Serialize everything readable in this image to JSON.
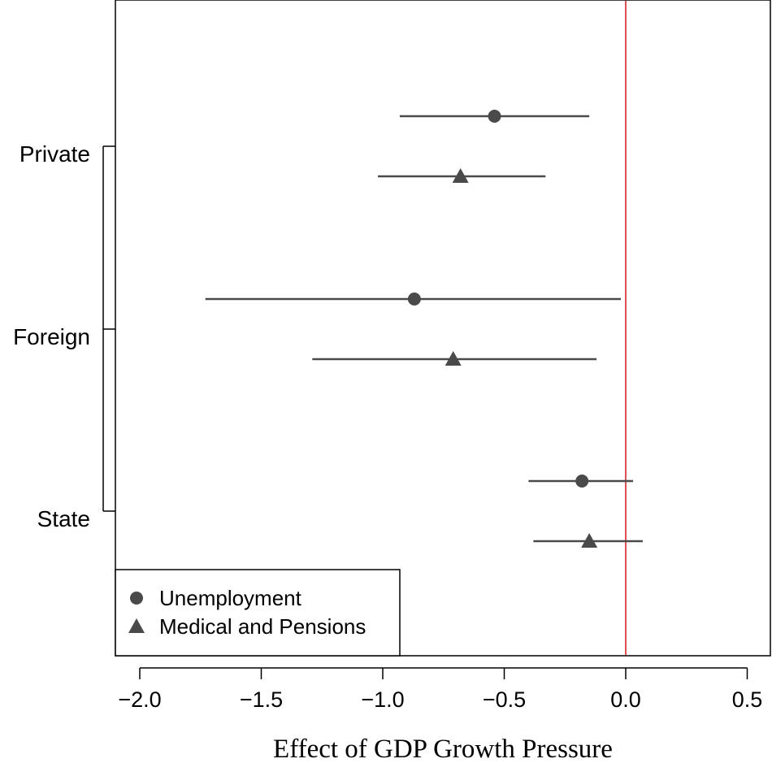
{
  "chart_data": {
    "type": "dot-and-whisker",
    "title": "",
    "xlabel": "Effect of GDP Growth Pressure",
    "ylabel": "",
    "xlim": [
      -2.1,
      0.6
    ],
    "xticks": [
      -2.0,
      -1.5,
      -1.0,
      -0.5,
      0.0,
      0.5
    ],
    "xtick_labels": [
      "−2.0",
      "−1.5",
      "−1.0",
      "−0.5",
      "0.0",
      "0.5"
    ],
    "reference_line": {
      "x": 0.0,
      "color": "#d62728"
    },
    "categories": [
      "Private",
      "Foreign",
      "State"
    ],
    "series": [
      {
        "name": "Unemployment",
        "marker": "circle",
        "color": "#4a4a4a",
        "points": [
          {
            "category": "Private",
            "estimate": -0.54,
            "lower": -0.93,
            "upper": -0.15
          },
          {
            "category": "Foreign",
            "estimate": -0.87,
            "lower": -1.73,
            "upper": -0.02
          },
          {
            "category": "State",
            "estimate": -0.18,
            "lower": -0.4,
            "upper": 0.03
          }
        ]
      },
      {
        "name": "Medical and Pensions",
        "marker": "triangle",
        "color": "#4a4a4a",
        "points": [
          {
            "category": "Private",
            "estimate": -0.68,
            "lower": -1.02,
            "upper": -0.33
          },
          {
            "category": "Foreign",
            "estimate": -0.71,
            "lower": -1.29,
            "upper": -0.12
          },
          {
            "category": "State",
            "estimate": -0.15,
            "lower": -0.38,
            "upper": 0.07
          }
        ]
      }
    ],
    "legend": {
      "position": "bottom-left"
    }
  }
}
